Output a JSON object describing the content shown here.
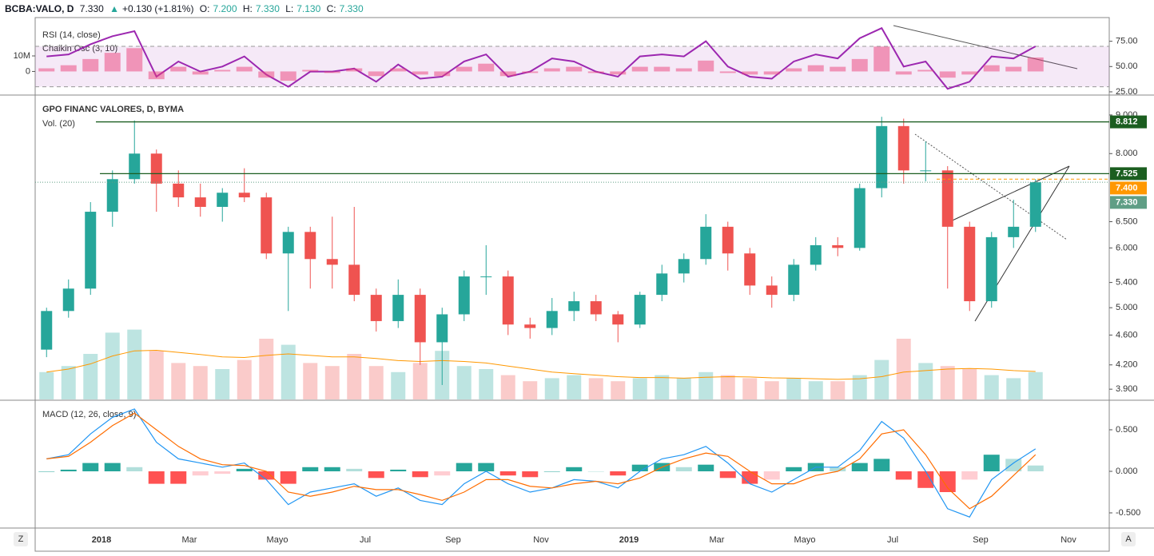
{
  "header": {
    "symbol": "BCBA:VALO, D",
    "last": "7.330",
    "arrow": "▲",
    "change": "+0.130 (+1.81%)",
    "ohlc": [
      {
        "key": "O:",
        "val": "7.200"
      },
      {
        "key": "H:",
        "val": "7.330"
      },
      {
        "key": "L:",
        "val": "7.130"
      },
      {
        "key": "C:",
        "val": "7.330"
      }
    ]
  },
  "toolbar": {
    "left": "Z",
    "right": "A"
  },
  "chart_data": [
    {
      "type": "line",
      "band": [
        30,
        70
      ],
      "band_color": "#9c27b0",
      "ylim": [
        22.6,
        98.4
      ],
      "yticks": [
        {
          "value": 25,
          "label": "25.00"
        },
        {
          "value": 50,
          "label": "50.00"
        },
        {
          "value": 75,
          "label": "75.00"
        }
      ],
      "y2lim": [
        -14700000,
        34700000
      ],
      "y2ticks": [
        0,
        {
          "value": 10000000,
          "label": "10M"
        }
      ],
      "series": [
        {
          "name": "RSI (14, close)",
          "color": "#9c27b0",
          "values": [
            60,
            62,
            72,
            80,
            85,
            40,
            55,
            45,
            50,
            60,
            42,
            30,
            45,
            45,
            48,
            35,
            52,
            38,
            40,
            55,
            62,
            40,
            45,
            58,
            55,
            45,
            40,
            60,
            62,
            60,
            75,
            50,
            40,
            38,
            55,
            62,
            58,
            78,
            88,
            50,
            55,
            28,
            35,
            60,
            58,
            70,
            null,
            null
          ]
        },
        {
          "name": "Chaikin Osc (3, 10)",
          "color": "#ec407a",
          "axis": "y2",
          "values": [
            2000000,
            4000000,
            8000000,
            12000000,
            15000000,
            -5000000,
            3000000,
            -2000000,
            1000000,
            3000000,
            -4000000,
            -6000000,
            1000000,
            -1000000,
            2000000,
            -3000000,
            2000000,
            -2000000,
            -3000000,
            3000000,
            5000000,
            -3000000,
            -1000000,
            2000000,
            3000000,
            -1000000,
            -2000000,
            3000000,
            3000000,
            2000000,
            7000000,
            -1000000,
            -2000000,
            -2000000,
            2000000,
            4000000,
            3000000,
            8000000,
            16000000,
            -2000000,
            1000000,
            -4000000,
            -2000000,
            4000000,
            3000000,
            9000000,
            null,
            null
          ]
        }
      ]
    },
    {
      "type": "candlestick",
      "title": "GPO FINANC VALORES, D, BYMA",
      "log_scale": true,
      "up_color": "#26a69a",
      "down_color": "#ef5350",
      "categories": [
        null,
        null,
        null,
        "2018",
        null,
        null,
        null,
        "Mar",
        null,
        null,
        null,
        "Mayo",
        null,
        null,
        null,
        "Jul",
        null,
        null,
        null,
        "Sep",
        null,
        null,
        null,
        "Nov",
        null,
        null,
        null,
        "2019",
        null,
        null,
        null,
        "Mar",
        null,
        null,
        null,
        "Mayo",
        null,
        null,
        null,
        "Jul",
        null,
        null,
        null,
        "Sep",
        null,
        null,
        null,
        "Nov"
      ],
      "open": [
        4.4,
        4.95,
        5.3,
        6.7,
        7.4,
        8.0,
        7.3,
        7.0,
        6.8,
        7.1,
        7.0,
        5.9,
        6.3,
        5.8,
        5.7,
        5.2,
        4.8,
        5.2,
        4.5,
        4.9,
        5.5,
        5.5,
        4.75,
        4.7,
        4.95,
        5.1,
        4.9,
        4.75,
        5.2,
        5.55,
        5.8,
        6.4,
        5.9,
        5.35,
        5.2,
        5.7,
        6.05,
        6.0,
        7.2,
        8.7,
        7.6,
        7.6,
        6.4,
        5.1,
        6.2,
        6.4,
        null,
        null
      ],
      "high": [
        5.0,
        5.45,
        6.9,
        7.6,
        8.85,
        8.1,
        7.6,
        7.3,
        7.2,
        7.65,
        7.1,
        6.4,
        6.4,
        6.6,
        6.8,
        5.3,
        5.45,
        5.3,
        5.0,
        5.6,
        6.05,
        5.6,
        4.85,
        5.15,
        5.25,
        5.2,
        4.95,
        5.25,
        5.7,
        5.9,
        6.65,
        6.5,
        6.0,
        5.5,
        5.8,
        6.2,
        6.2,
        7.3,
        8.95,
        8.9,
        8.3,
        7.7,
        6.5,
        6.3,
        6.95,
        7.4,
        null,
        null
      ],
      "low": [
        4.3,
        4.85,
        5.2,
        6.4,
        7.3,
        6.7,
        6.8,
        6.6,
        6.5,
        6.9,
        5.8,
        4.95,
        5.3,
        5.3,
        5.1,
        4.65,
        4.7,
        4.2,
        3.95,
        4.8,
        5.2,
        4.6,
        4.55,
        4.6,
        4.8,
        4.8,
        4.5,
        4.7,
        5.1,
        5.4,
        5.7,
        5.6,
        5.2,
        5.0,
        5.1,
        5.6,
        5.85,
        5.95,
        7.0,
        7.3,
        7.35,
        5.3,
        4.95,
        5.0,
        6.0,
        6.3,
        null,
        null
      ],
      "close": [
        4.95,
        5.3,
        6.7,
        7.4,
        8.0,
        7.3,
        7.0,
        6.8,
        7.1,
        7.0,
        5.9,
        6.3,
        5.8,
        5.7,
        5.2,
        4.8,
        5.2,
        4.5,
        4.9,
        5.5,
        5.5,
        4.75,
        4.7,
        4.95,
        5.1,
        4.9,
        4.75,
        5.2,
        5.55,
        5.8,
        6.4,
        5.9,
        5.35,
        5.2,
        5.7,
        6.05,
        6.0,
        7.2,
        8.7,
        7.6,
        7.6,
        6.4,
        5.1,
        6.2,
        6.4,
        7.33,
        null,
        null
      ],
      "ylim": [
        3.78,
        9.54
      ],
      "yticks": [
        {
          "value": 3.9,
          "label": "3.900"
        },
        {
          "value": 4.2,
          "label": "4.200"
        },
        {
          "value": 4.6,
          "label": "4.600"
        },
        {
          "value": 5,
          "label": "5.000"
        },
        {
          "value": 5.4,
          "label": "5.400"
        },
        {
          "value": 6,
          "label": "6.000"
        },
        {
          "value": 6.5,
          "label": "6.500"
        },
        {
          "value": 8,
          "label": "8.000"
        },
        {
          "value": 9,
          "label": "9.000"
        }
      ],
      "levels": [
        {
          "value": 8.812,
          "label": "8.812",
          "color": "#1b5e20",
          "style": "solid"
        },
        {
          "value": 7.525,
          "label": "7.525",
          "color": "#1b5e20",
          "style": "solid"
        },
        {
          "value": 7.4,
          "label": "7.400",
          "color": "#ff9800",
          "style": "dashed"
        },
        {
          "value": 7.33,
          "label": "7.330",
          "color": "#5f9e85",
          "style": "dotted"
        }
      ],
      "volume": {
        "name": "Vol. (20)",
        "ylim": [
          0,
          1000000
        ],
        "ma_color": "#ff9800",
        "values": [
          90000,
          110000,
          150000,
          220000,
          230000,
          160000,
          120000,
          110000,
          100000,
          130000,
          200000,
          180000,
          120000,
          110000,
          150000,
          110000,
          90000,
          120000,
          160000,
          110000,
          100000,
          80000,
          60000,
          70000,
          80000,
          70000,
          60000,
          70000,
          80000,
          70000,
          90000,
          80000,
          70000,
          60000,
          70000,
          60000,
          60000,
          80000,
          130000,
          200000,
          120000,
          110000,
          100000,
          80000,
          70000,
          90000,
          null,
          null
        ],
        "ma": [
          90000,
          100000,
          117000,
          143000,
          160000,
          162000,
          155000,
          148000,
          140000,
          138000,
          145000,
          150000,
          145000,
          140000,
          140000,
          135000,
          128000,
          125000,
          128000,
          125000,
          120000,
          110000,
          100000,
          90000,
          85000,
          80000,
          75000,
          72000,
          72000,
          70000,
          73000,
          75000,
          74000,
          71000,
          70000,
          68000,
          66000,
          68000,
          75000,
          90000,
          95000,
          100000,
          102000,
          100000,
          95000,
          92000,
          null,
          null
        ]
      }
    },
    {
      "type": "macd",
      "title": "MACD (12, 26, close, 9)",
      "ylim": [
        -0.673,
        0.846
      ],
      "yticks": [
        {
          "value": 0.5,
          "label": "0.500"
        },
        {
          "value": 0,
          "label": "0.000"
        },
        {
          "value": -0.5,
          "label": "-0.500"
        }
      ],
      "series": [
        {
          "color": "#2196f3",
          "values": [
            0.15,
            0.2,
            0.45,
            0.65,
            0.75,
            0.35,
            0.15,
            0.1,
            0.05,
            0.1,
            -0.1,
            -0.4,
            -0.25,
            -0.2,
            -0.15,
            -0.3,
            -0.2,
            -0.35,
            -0.4,
            -0.15,
            0.0,
            -0.15,
            -0.25,
            -0.2,
            -0.1,
            -0.12,
            -0.2,
            0.0,
            0.15,
            0.2,
            0.3,
            0.1,
            -0.15,
            -0.25,
            -0.1,
            0.05,
            0.05,
            0.25,
            0.6,
            0.4,
            0.0,
            -0.45,
            -0.55,
            -0.1,
            0.1,
            0.27,
            null,
            null
          ]
        },
        {
          "color": "#ff6d00",
          "values": [
            0.15,
            0.18,
            0.35,
            0.55,
            0.7,
            0.5,
            0.3,
            0.15,
            0.08,
            0.07,
            0.0,
            -0.25,
            -0.3,
            -0.25,
            -0.18,
            -0.22,
            -0.22,
            -0.28,
            -0.35,
            -0.25,
            -0.1,
            -0.1,
            -0.18,
            -0.2,
            -0.15,
            -0.12,
            -0.15,
            -0.08,
            0.05,
            0.15,
            0.22,
            0.18,
            0.0,
            -0.15,
            -0.15,
            -0.05,
            0.0,
            0.15,
            0.45,
            0.5,
            0.2,
            -0.2,
            -0.45,
            -0.3,
            -0.05,
            0.2,
            null,
            null
          ]
        }
      ],
      "histogram": {
        "colors": [
          "#26a69a",
          "#b2dfdb",
          "#ff5252",
          "#ffcdd2"
        ],
        "values": [
          0,
          0.02,
          0.1,
          0.1,
          0.05,
          -0.15,
          -0.15,
          -0.05,
          -0.03,
          0.03,
          -0.1,
          -0.15,
          0.05,
          0.05,
          0.03,
          -0.08,
          0.02,
          -0.07,
          -0.05,
          0.1,
          0.1,
          -0.05,
          -0.07,
          0.0,
          0.05,
          0.0,
          -0.05,
          0.08,
          0.1,
          0.05,
          0.08,
          -0.08,
          -0.15,
          -0.1,
          0.05,
          0.1,
          0.05,
          0.1,
          0.15,
          -0.1,
          -0.2,
          -0.25,
          -0.1,
          0.2,
          0.15,
          0.07,
          null,
          null
        ]
      }
    }
  ]
}
